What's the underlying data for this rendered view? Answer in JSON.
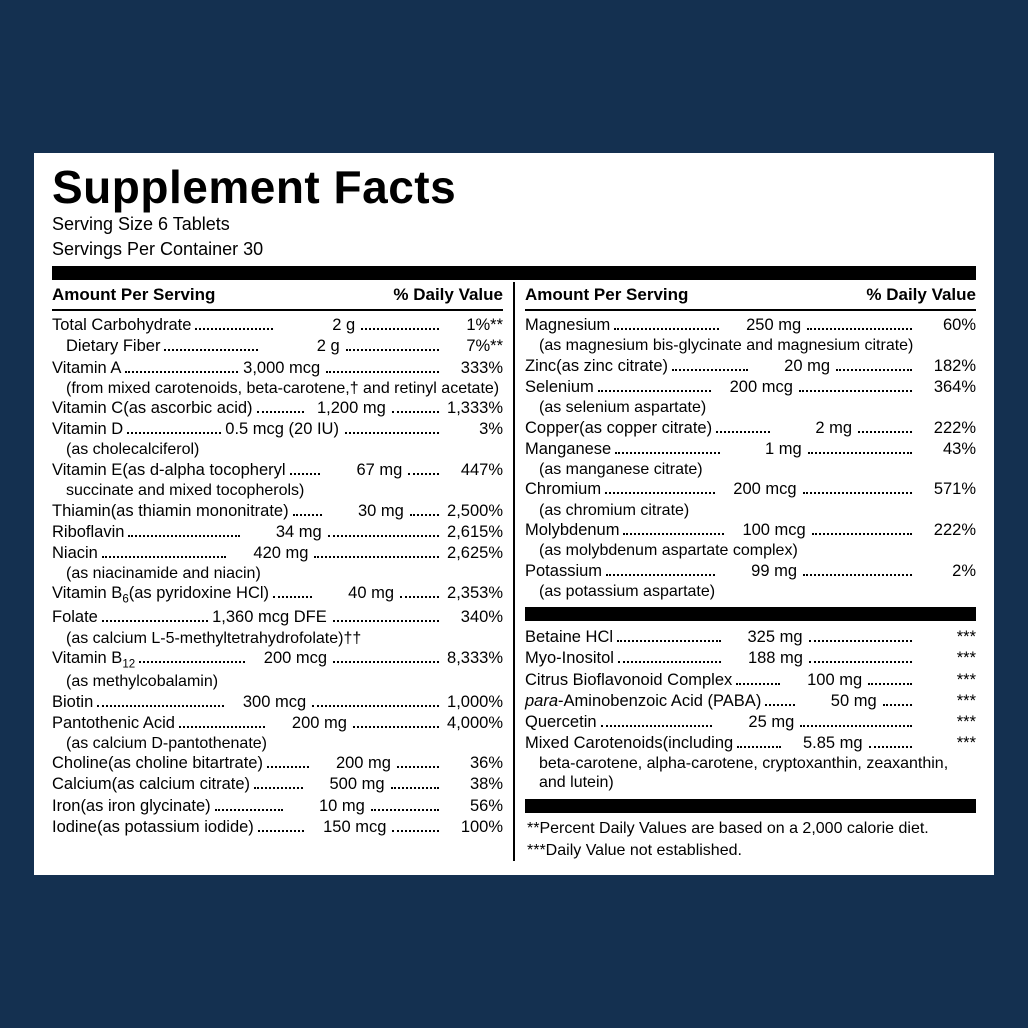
{
  "title": "Supplement Facts",
  "serving_size": "Serving Size 6 Tablets",
  "servings_per_container": "Servings Per Container 30",
  "header_left": "Amount Per Serving",
  "header_right": "% Daily Value",
  "colors": {
    "page_bg": "#143050",
    "panel_bg": "#ffffff",
    "rule": "#000000"
  },
  "left": [
    {
      "name": "Total Carbohydrate",
      "amount": "2 g",
      "dv": "1%**"
    },
    {
      "name": "Dietary Fiber",
      "amount": "2 g",
      "dv": "7%**",
      "indent": true
    },
    {
      "name": "Vitamin A",
      "amount": "3,000 mcg",
      "dv": "333%",
      "note": "(from mixed carotenoids, beta-carotene,† and retinyl acetate)"
    },
    {
      "name": "Vitamin C",
      "qual": " (as ascorbic acid)",
      "amount": "1,200 mg",
      "dv": "1,333%"
    },
    {
      "name": "Vitamin D",
      "amount": "0.5 mcg (20 IU)",
      "dv": "3%",
      "note": "(as cholecalciferol)"
    },
    {
      "name": "Vitamin E",
      "qual": " (as d-alpha tocopheryl",
      "amount": "67 mg",
      "dv": "447%",
      "note": "succinate and mixed tocopherols)",
      "note_noindent": true
    },
    {
      "name": "Thiamin",
      "qual": " (as thiamin mononitrate)",
      "amount": "30 mg",
      "dv": "2,500%"
    },
    {
      "name": "Riboflavin",
      "amount": "34 mg",
      "dv": "2,615%"
    },
    {
      "name": "Niacin",
      "amount": "420 mg",
      "dv": "2,625%",
      "note": "(as niacinamide and niacin)"
    },
    {
      "name_html": "Vitamin B<sub>6</sub>",
      "qual": " (as pyridoxine HCl)",
      "amount": "40 mg",
      "dv": "2,353%"
    },
    {
      "name": "Folate",
      "amount": "1,360 mcg DFE",
      "dv": "340%",
      "note": "(as calcium L-5-methyltetrahydrofolate)††"
    },
    {
      "name_html": "Vitamin B<sub>12</sub>",
      "amount": "200 mcg",
      "dv": "8,333%",
      "note": "(as methylcobalamin)"
    },
    {
      "name": "Biotin",
      "amount": "300 mcg",
      "dv": "1,000%"
    },
    {
      "name": "Pantothenic Acid",
      "amount": "200 mg",
      "dv": "4,000%",
      "note": "(as calcium D-pantothenate)"
    },
    {
      "name": "Choline",
      "qual": " (as choline bitartrate)",
      "amount": "200 mg",
      "dv": "36%"
    },
    {
      "name": "Calcium",
      "qual": " (as calcium citrate)",
      "amount": "500 mg",
      "dv": "38%"
    },
    {
      "name": "Iron",
      "qual": " (as iron glycinate)",
      "amount": "10 mg",
      "dv": "56%"
    },
    {
      "name": "Iodine",
      "qual": " (as potassium iodide)",
      "amount": "150 mcg",
      "dv": "100%"
    }
  ],
  "right_a": [
    {
      "name": "Magnesium",
      "amount": "250 mg",
      "dv": "60%",
      "note": "(as magnesium bis-glycinate and magnesium citrate)"
    },
    {
      "name": "Zinc",
      "qual": " (as zinc citrate)",
      "amount": "20 mg",
      "dv": "182%"
    },
    {
      "name": "Selenium",
      "amount": "200 mcg",
      "dv": "364%",
      "note": "(as selenium aspartate)"
    },
    {
      "name": "Copper",
      "qual": " (as copper citrate)",
      "amount": "2 mg",
      "dv": "222%"
    },
    {
      "name": "Manganese",
      "amount": "1 mg",
      "dv": "43%",
      "note": "(as manganese citrate)"
    },
    {
      "name": "Chromium",
      "amount": "200 mcg",
      "dv": "571%",
      "note": "(as chromium citrate)"
    },
    {
      "name": "Molybdenum",
      "amount": "100 mcg",
      "dv": "222%",
      "note": "(as molybdenum aspartate complex)"
    },
    {
      "name": "Potassium",
      "amount": "99 mg",
      "dv": "2%",
      "note": "(as potassium aspartate)"
    }
  ],
  "right_b": [
    {
      "name": "Betaine HCl",
      "amount": "325 mg",
      "dv": "***"
    },
    {
      "name": "Myo-Inositol",
      "amount": "188 mg",
      "dv": "***"
    },
    {
      "name": "Citrus Bioflavonoid Complex",
      "amount": "100 mg",
      "dv": "***"
    },
    {
      "name_html": "<em class='i'>para</em>-Aminobenzoic Acid (PABA)",
      "amount": "50 mg",
      "dv": "***"
    },
    {
      "name": "Quercetin",
      "amount": "25 mg",
      "dv": "***"
    },
    {
      "name": "Mixed Carotenoids",
      "qual": " (including",
      "amount": "5.85 mg",
      "dv": "***",
      "note": "beta-carotene, alpha-carotene, cryptoxanthin, zeaxanthin, and lutein)"
    }
  ],
  "footnotes": [
    "**Percent Daily Values are based on a 2,000 calorie diet.",
    "***Daily Value not established."
  ]
}
